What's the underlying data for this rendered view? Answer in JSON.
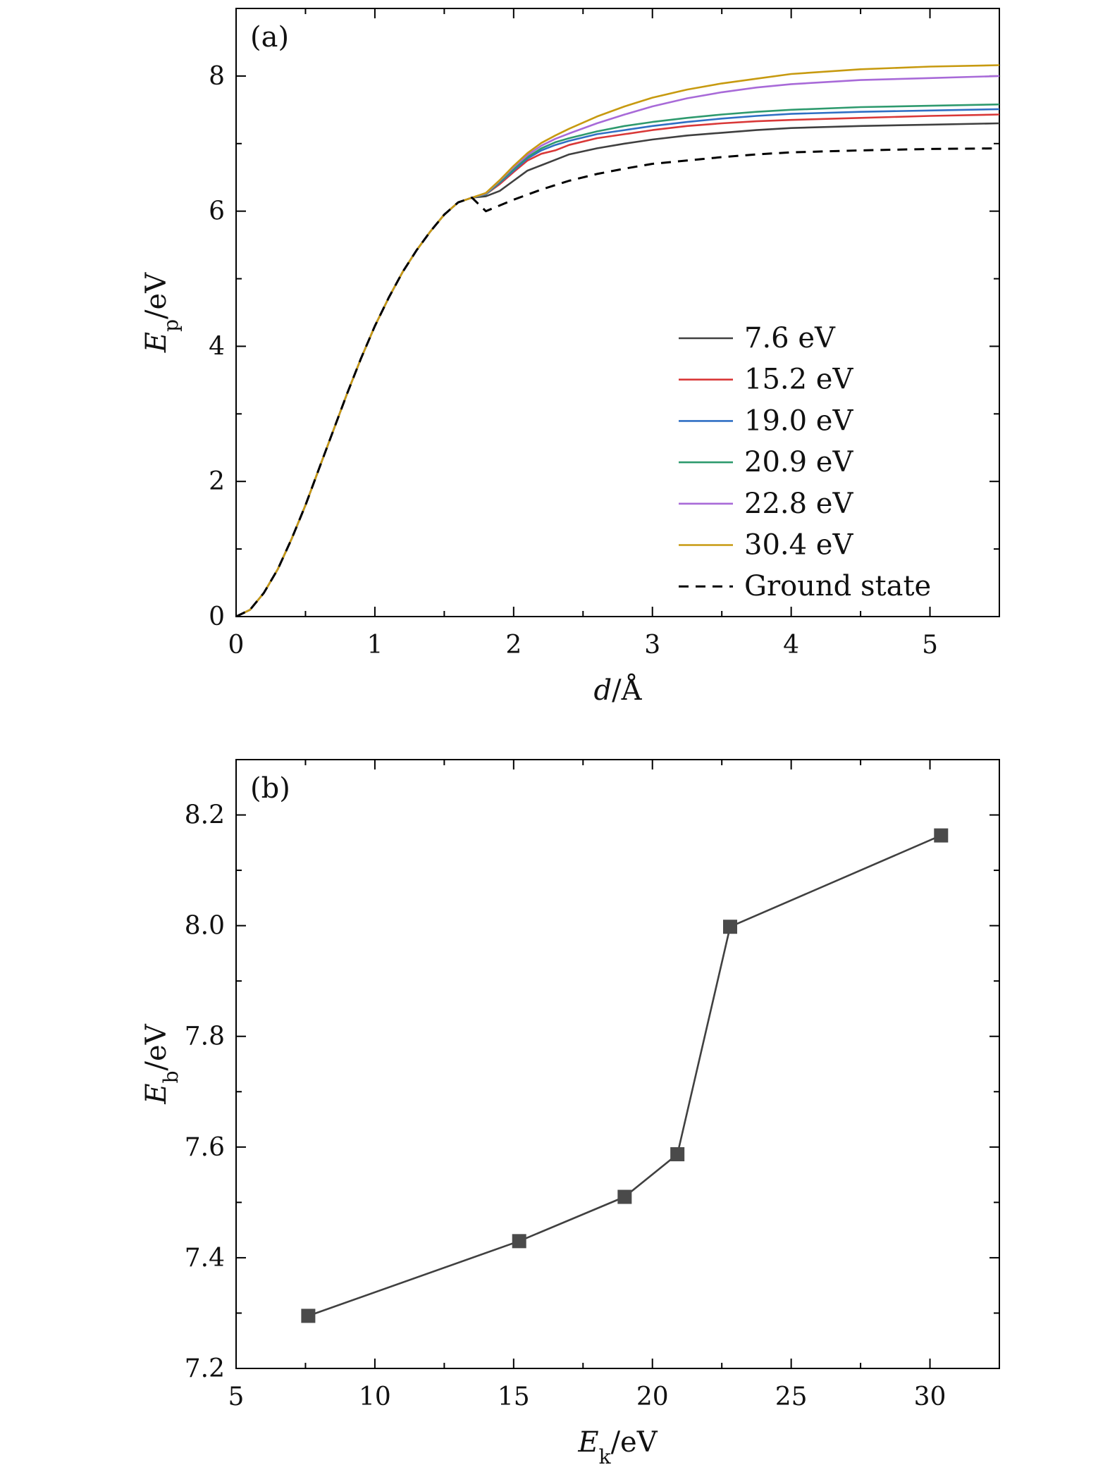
{
  "chart_data": [
    {
      "type": "line",
      "panel_label": "(a)",
      "xlabel_var": "d",
      "xlabel_unit": "/Å",
      "ylabel_var": "E",
      "ylabel_sub": "p",
      "ylabel_unit": "/eV",
      "xlim": [
        0,
        5.5
      ],
      "ylim": [
        0,
        9
      ],
      "xticks": [
        0,
        1,
        2,
        3,
        4,
        5
      ],
      "yticks": [
        0,
        2,
        4,
        6,
        8
      ],
      "legend_position": "right",
      "grid": false,
      "series": [
        {
          "name": "7.6 eV",
          "color": "#404040",
          "dash": "solid",
          "x": [
            0,
            0.1,
            0.2,
            0.3,
            0.4,
            0.5,
            0.6,
            0.7,
            0.8,
            0.9,
            1.0,
            1.1,
            1.2,
            1.3,
            1.4,
            1.5,
            1.6,
            1.7,
            1.8,
            1.9,
            2.0,
            2.1,
            2.2,
            2.3,
            2.4,
            2.6,
            2.8,
            3.0,
            3.25,
            3.5,
            3.75,
            4.0,
            4.5,
            5.0,
            5.5
          ],
          "y": [
            0,
            0.1,
            0.35,
            0.7,
            1.15,
            1.65,
            2.2,
            2.75,
            3.3,
            3.82,
            4.3,
            4.72,
            5.1,
            5.42,
            5.7,
            5.95,
            6.13,
            6.2,
            6.22,
            6.3,
            6.45,
            6.6,
            6.68,
            6.76,
            6.84,
            6.93,
            7.0,
            7.06,
            7.12,
            7.16,
            7.2,
            7.23,
            7.26,
            7.28,
            7.3
          ]
        },
        {
          "name": "15.2 eV",
          "color": "#d93838",
          "dash": "solid",
          "x": [
            0,
            0.1,
            0.2,
            0.3,
            0.4,
            0.5,
            0.6,
            0.7,
            0.8,
            0.9,
            1.0,
            1.1,
            1.2,
            1.3,
            1.4,
            1.5,
            1.6,
            1.7,
            1.8,
            1.9,
            2.0,
            2.1,
            2.2,
            2.3,
            2.4,
            2.6,
            2.8,
            3.0,
            3.25,
            3.5,
            3.75,
            4.0,
            4.5,
            5.0,
            5.5
          ],
          "y": [
            0,
            0.1,
            0.35,
            0.7,
            1.15,
            1.65,
            2.2,
            2.75,
            3.3,
            3.82,
            4.3,
            4.72,
            5.1,
            5.42,
            5.7,
            5.95,
            6.13,
            6.2,
            6.25,
            6.4,
            6.58,
            6.75,
            6.85,
            6.9,
            6.98,
            7.08,
            7.14,
            7.2,
            7.26,
            7.3,
            7.33,
            7.35,
            7.38,
            7.41,
            7.43
          ]
        },
        {
          "name": "19.0 eV",
          "color": "#2f6fc4",
          "dash": "solid",
          "x": [
            0,
            0.1,
            0.2,
            0.3,
            0.4,
            0.5,
            0.6,
            0.7,
            0.8,
            0.9,
            1.0,
            1.1,
            1.2,
            1.3,
            1.4,
            1.5,
            1.6,
            1.7,
            1.8,
            1.9,
            2.0,
            2.1,
            2.2,
            2.3,
            2.4,
            2.6,
            2.8,
            3.0,
            3.25,
            3.5,
            3.75,
            4.0,
            4.5,
            5.0,
            5.5
          ],
          "y": [
            0,
            0.1,
            0.35,
            0.7,
            1.15,
            1.65,
            2.2,
            2.75,
            3.3,
            3.82,
            4.3,
            4.72,
            5.1,
            5.42,
            5.7,
            5.95,
            6.13,
            6.2,
            6.25,
            6.42,
            6.6,
            6.78,
            6.9,
            6.98,
            7.04,
            7.14,
            7.2,
            7.26,
            7.32,
            7.37,
            7.41,
            7.44,
            7.47,
            7.49,
            7.51
          ]
        },
        {
          "name": "20.9 eV",
          "color": "#2e9a6e",
          "dash": "solid",
          "x": [
            0,
            0.1,
            0.2,
            0.3,
            0.4,
            0.5,
            0.6,
            0.7,
            0.8,
            0.9,
            1.0,
            1.1,
            1.2,
            1.3,
            1.4,
            1.5,
            1.6,
            1.7,
            1.8,
            1.9,
            2.0,
            2.1,
            2.2,
            2.3,
            2.4,
            2.6,
            2.8,
            3.0,
            3.25,
            3.5,
            3.75,
            4.0,
            4.5,
            5.0,
            5.5
          ],
          "y": [
            0,
            0.1,
            0.35,
            0.7,
            1.15,
            1.65,
            2.2,
            2.75,
            3.3,
            3.82,
            4.3,
            4.72,
            5.1,
            5.42,
            5.7,
            5.95,
            6.13,
            6.2,
            6.25,
            6.43,
            6.62,
            6.8,
            6.93,
            7.02,
            7.08,
            7.18,
            7.26,
            7.32,
            7.38,
            7.43,
            7.47,
            7.5,
            7.54,
            7.56,
            7.58
          ]
        },
        {
          "name": "22.8 eV",
          "color": "#a86ad8",
          "dash": "solid",
          "x": [
            0,
            0.1,
            0.2,
            0.3,
            0.4,
            0.5,
            0.6,
            0.7,
            0.8,
            0.9,
            1.0,
            1.1,
            1.2,
            1.3,
            1.4,
            1.5,
            1.6,
            1.7,
            1.8,
            1.9,
            2.0,
            2.1,
            2.2,
            2.3,
            2.4,
            2.6,
            2.8,
            3.0,
            3.25,
            3.5,
            3.75,
            4.0,
            4.5,
            5.0,
            5.5
          ],
          "y": [
            0,
            0.1,
            0.35,
            0.7,
            1.15,
            1.65,
            2.2,
            2.75,
            3.3,
            3.82,
            4.3,
            4.72,
            5.1,
            5.42,
            5.7,
            5.95,
            6.13,
            6.2,
            6.26,
            6.45,
            6.65,
            6.83,
            6.97,
            7.07,
            7.15,
            7.3,
            7.43,
            7.55,
            7.67,
            7.76,
            7.83,
            7.88,
            7.94,
            7.97,
            8.0
          ]
        },
        {
          "name": "30.4 eV",
          "color": "#c79a10",
          "dash": "solid",
          "x": [
            0,
            0.1,
            0.2,
            0.3,
            0.4,
            0.5,
            0.6,
            0.7,
            0.8,
            0.9,
            1.0,
            1.1,
            1.2,
            1.3,
            1.4,
            1.5,
            1.6,
            1.7,
            1.8,
            1.9,
            2.0,
            2.1,
            2.2,
            2.3,
            2.4,
            2.6,
            2.8,
            3.0,
            3.25,
            3.5,
            3.75,
            4.0,
            4.5,
            5.0,
            5.5
          ],
          "y": [
            0,
            0.1,
            0.35,
            0.7,
            1.15,
            1.65,
            2.2,
            2.75,
            3.3,
            3.82,
            4.3,
            4.72,
            5.1,
            5.42,
            5.7,
            5.95,
            6.13,
            6.2,
            6.27,
            6.46,
            6.67,
            6.86,
            7.01,
            7.12,
            7.22,
            7.4,
            7.55,
            7.68,
            7.8,
            7.89,
            7.96,
            8.03,
            8.1,
            8.14,
            8.16
          ]
        },
        {
          "name": "Ground state",
          "color": "#000000",
          "dash": "dashed",
          "x": [
            0,
            0.1,
            0.2,
            0.3,
            0.4,
            0.5,
            0.6,
            0.7,
            0.8,
            0.9,
            1.0,
            1.1,
            1.2,
            1.3,
            1.4,
            1.5,
            1.6,
            1.7,
            1.8,
            2.0,
            2.2,
            2.4,
            2.6,
            2.8,
            3.0,
            3.25,
            3.5,
            3.75,
            4.0,
            4.5,
            5.0,
            5.5
          ],
          "y": [
            0,
            0.1,
            0.35,
            0.7,
            1.15,
            1.65,
            2.2,
            2.75,
            3.3,
            3.82,
            4.3,
            4.72,
            5.1,
            5.42,
            5.7,
            5.95,
            6.13,
            6.2,
            6.0,
            6.17,
            6.32,
            6.45,
            6.55,
            6.63,
            6.7,
            6.75,
            6.8,
            6.84,
            6.87,
            6.9,
            6.92,
            6.93
          ]
        }
      ]
    },
    {
      "type": "line",
      "panel_label": "(b)",
      "xlabel_var": "E",
      "xlabel_sub": "k",
      "xlabel_unit": "/eV",
      "ylabel_var": "E",
      "ylabel_sub": "b",
      "ylabel_unit": "/eV",
      "xlim": [
        5,
        32.5
      ],
      "ylim": [
        7.2,
        8.3
      ],
      "xticks": [
        5,
        10,
        15,
        20,
        25,
        30
      ],
      "yticks": [
        7.2,
        7.4,
        7.6,
        7.8,
        8.0,
        8.2
      ],
      "ytick_labels": [
        "7.2",
        "7.4",
        "7.6",
        "7.8",
        "8.0",
        "8.2"
      ],
      "grid": false,
      "marker": "square",
      "series": [
        {
          "color": "#404040",
          "x": [
            7.6,
            15.2,
            19.0,
            20.9,
            22.8,
            30.4
          ],
          "y": [
            7.295,
            7.43,
            7.51,
            7.587,
            7.998,
            8.163
          ]
        }
      ]
    }
  ]
}
